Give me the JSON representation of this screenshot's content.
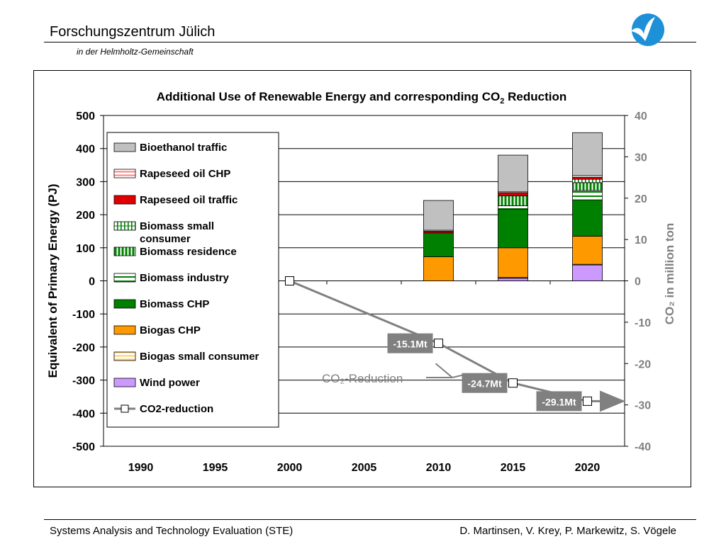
{
  "header": {
    "title": "Forschungszentrum Jülich",
    "subtitle": "in der Helmholtz-Gemeinschaft"
  },
  "footer": {
    "left": "Systems Analysis and Technology Evaluation (STE)",
    "right": "D. Martinsen, V. Krey, P. Markewitz, S. Vögele"
  },
  "colors": {
    "logo_blue": "#1e90d8",
    "bioethanol": "#c0c0c0",
    "rapeseed_chp": "#ff8080",
    "rapeseed_traffic": "#e00000",
    "biomass_small": "#008000",
    "biomass_residence": "#008000",
    "biomass_industry": "#008000",
    "biomass_chp": "#008000",
    "biogas_chp": "#ff9900",
    "biogas_small": "#ffcc66",
    "wind": "#cc99ff",
    "co2_line": "#808080"
  },
  "chart_data": {
    "type": "bar",
    "title": "Additional Use of Renewable Energy and corresponding CO",
    "title_sub": "2",
    "title_end": " Reduction",
    "ylabel": "Equivalent of Primary Energy (PJ)",
    "y2label": "CO₂ in million ton",
    "ylim": [
      -500,
      500
    ],
    "y2lim": [
      -40,
      40
    ],
    "categories": [
      "1990",
      "1995",
      "2000",
      "2005",
      "2010",
      "2015",
      "2020"
    ],
    "yticks": [
      "500",
      "400",
      "300",
      "200",
      "100",
      "0",
      "-100",
      "-200",
      "-300",
      "-400",
      "-500"
    ],
    "y2ticks": [
      "40",
      "30",
      "20",
      "10",
      "0",
      "-10",
      "-20",
      "-30",
      "-40"
    ],
    "series": [
      {
        "name": "Wind power",
        "values": [
          0,
          0,
          0,
          0,
          0,
          8,
          48
        ]
      },
      {
        "name": "Biogas small consumer",
        "values": [
          0,
          0,
          0,
          0,
          0,
          2,
          2
        ]
      },
      {
        "name": "Biogas CHP",
        "values": [
          0,
          0,
          0,
          0,
          73,
          90,
          85
        ]
      },
      {
        "name": "Biomass CHP",
        "values": [
          0,
          0,
          0,
          0,
          72,
          117,
          110
        ]
      },
      {
        "name": "Biomass industry",
        "values": [
          0,
          0,
          0,
          0,
          0,
          10,
          28
        ]
      },
      {
        "name": "Biomass residence",
        "values": [
          0,
          0,
          0,
          0,
          0,
          30,
          24
        ]
      },
      {
        "name": "Biomass small consumer",
        "values": [
          0,
          0,
          0,
          0,
          0,
          0,
          10
        ]
      },
      {
        "name": "Rapeseed oil traffic",
        "values": [
          0,
          0,
          0,
          0,
          5,
          8,
          6
        ]
      },
      {
        "name": "Rapeseed oil CHP",
        "values": [
          0,
          0,
          0,
          0,
          3,
          4,
          5
        ]
      },
      {
        "name": "Bioethanol traffic",
        "values": [
          0,
          0,
          0,
          0,
          90,
          111,
          130
        ]
      }
    ],
    "legend": [
      "Bioethanol traffic",
      "Rapeseed oil CHP",
      "Rapeseed oil traffic",
      "Biomass small consumer",
      "Biomass residence",
      "Biomass industry",
      "Biomass CHP",
      "Biogas CHP",
      "Biogas small consumer",
      "Wind power",
      "CO2-reduction"
    ],
    "legend_placement": "top-left",
    "co2_reduction": {
      "name": "CO2-reduction",
      "x": [
        "2000",
        "2010",
        "2015",
        "2020"
      ],
      "values": [
        0,
        -15.1,
        -24.7,
        -29.1
      ],
      "labels": [
        "",
        "-15.1Mt",
        "-24.7Mt",
        "-29.1Mt"
      ]
    },
    "annotation": "CO₂-Reduction",
    "grid": true
  }
}
